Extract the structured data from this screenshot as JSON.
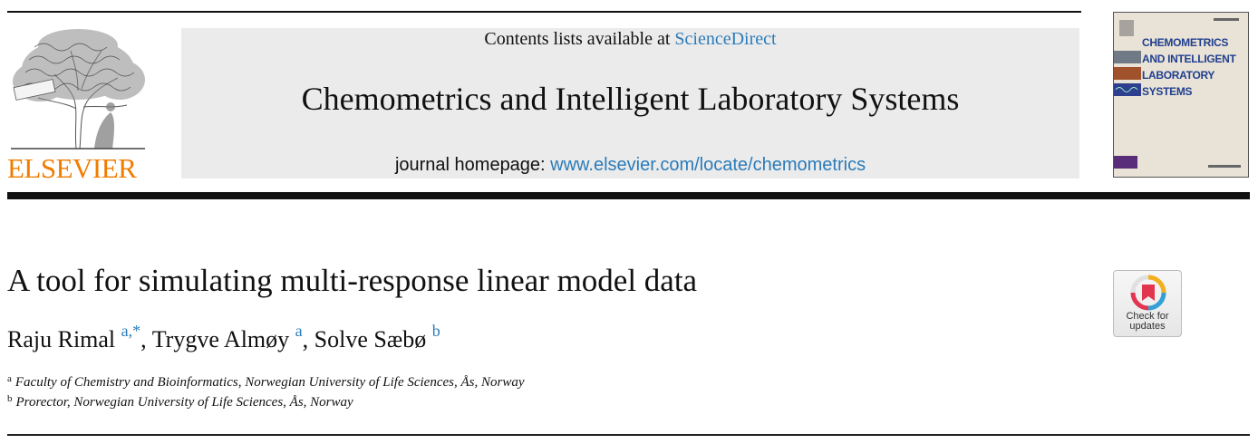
{
  "header": {
    "publisher_name": "ELSEVIER",
    "contents_prefix": "Contents lists available at ",
    "contents_link": "ScienceDirect",
    "journal_title": "Chemometrics and Intelligent Laboratory Systems",
    "homepage_prefix": "journal homepage: ",
    "homepage_link": "www.elsevier.com/locate/chemometrics",
    "cover_title": "CHEMOMETRICS\nAND INTELLIGENT\nLABORATORY\nSYSTEMS"
  },
  "article": {
    "title": "A tool for simulating multi-response linear model data",
    "authors": [
      {
        "name": "Raju Rimal",
        "sup": "a,",
        "sup2": "*"
      },
      {
        "name": "Trygve Almøy",
        "sup": "a"
      },
      {
        "name": "Solve Sæbø",
        "sup": "b"
      }
    ],
    "author_sep": ", ",
    "affiliations": [
      {
        "marker": "a",
        "text": "Faculty of Chemistry and Bioinformatics, Norwegian University of Life Sciences, Ås, Norway"
      },
      {
        "marker": "b",
        "text": "Prorector, Norwegian University of Life Sciences, Ås, Norway"
      }
    ]
  },
  "badge": {
    "label": "Check for\nupdates",
    "icon": "bookmark-icon"
  },
  "colors": {
    "link": "#2b7bb9",
    "elsevier_orange": "#f07c00",
    "banner_gray": "#ebebeb"
  }
}
